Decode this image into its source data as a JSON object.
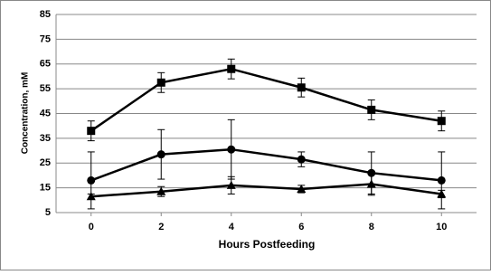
{
  "chart_data": {
    "type": "line",
    "xlabel": "Hours Postfeeding",
    "ylabel": "Concentration, mM",
    "x": [
      0,
      2,
      4,
      6,
      8,
      10
    ],
    "series": [
      {
        "marker": "square",
        "color": "#000000",
        "values": [
          38,
          57.5,
          63,
          55.5,
          46.5,
          42
        ],
        "errors": [
          4,
          4,
          4,
          3.8,
          4,
          4
        ]
      },
      {
        "marker": "circle",
        "color": "#000000",
        "values": [
          18,
          28.5,
          30.5,
          26.5,
          21,
          18
        ],
        "errors": [
          11.5,
          10,
          12,
          3,
          8.5,
          11.5
        ]
      },
      {
        "marker": "triangle",
        "color": "#000000",
        "values": [
          11.5,
          13.5,
          16,
          14.5,
          16.5,
          12.5
        ],
        "errors": [
          1,
          2,
          3.5,
          1.5,
          4.5,
          1.5
        ]
      }
    ],
    "xlim": [
      -1,
      11
    ],
    "xticks": [
      0,
      2,
      4,
      6,
      8,
      10
    ],
    "ylim": [
      5,
      85
    ],
    "yticks": [
      5,
      15,
      25,
      35,
      45,
      55,
      65,
      75,
      85
    ],
    "grid": true
  }
}
